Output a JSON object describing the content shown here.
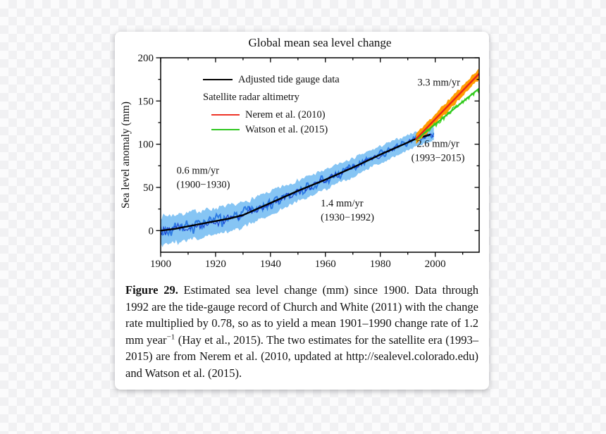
{
  "chart_data": {
    "type": "line",
    "title": "Global mean sea level change",
    "xlabel": "",
    "ylabel": "Sea level anomaly (mm)",
    "xlim": [
      1900,
      2016
    ],
    "ylim": [
      -25,
      200
    ],
    "xticks": [
      1900,
      1920,
      1940,
      1960,
      1980,
      2000
    ],
    "yticks": [
      0,
      50,
      100,
      150,
      200
    ],
    "x_minor_step": 10,
    "y_minor_step": 25,
    "grid": false,
    "legend_position": "upper left",
    "series": [
      {
        "name": "Tide gauge uncertainty band",
        "kind": "noisy-band",
        "color": "#86c5f4",
        "seed": 7,
        "x_start": 1900,
        "x_end": 1999.5,
        "half_width_mm": 10,
        "noise_mm": 6,
        "amp_taper": [
          1.3,
          0.6
        ],
        "points": [
          [
            1900,
            0
          ],
          [
            1905,
            2
          ],
          [
            1910,
            5
          ],
          [
            1915,
            8
          ],
          [
            1920,
            11
          ],
          [
            1925,
            14
          ],
          [
            1930,
            18
          ],
          [
            1940,
            32
          ],
          [
            1950,
            46
          ],
          [
            1960,
            59
          ],
          [
            1970,
            73
          ],
          [
            1980,
            88
          ],
          [
            1990,
            102
          ],
          [
            1992,
            105
          ],
          [
            1999.5,
            112
          ]
        ]
      },
      {
        "name": "Tide gauge record",
        "kind": "noisy-line",
        "color": "#2e7ce4",
        "width": 2.0,
        "seed": 3,
        "x_start": 1900,
        "x_end": 1999.5,
        "noise_mm": 8,
        "amp_taper": [
          1.3,
          0.6
        ],
        "points": [
          [
            1900,
            0
          ],
          [
            1905,
            2
          ],
          [
            1910,
            5
          ],
          [
            1915,
            8
          ],
          [
            1920,
            11
          ],
          [
            1925,
            14
          ],
          [
            1930,
            18
          ],
          [
            1940,
            32
          ],
          [
            1950,
            46
          ],
          [
            1960,
            59
          ],
          [
            1970,
            73
          ],
          [
            1980,
            88
          ],
          [
            1990,
            102
          ],
          [
            1992,
            105
          ],
          [
            1999.5,
            112
          ]
        ]
      },
      {
        "name": "Tide gauge record detail",
        "kind": "noisy-line",
        "color": "#1a3fd0",
        "width": 1.1,
        "seed": 12,
        "x_start": 1900,
        "x_end": 1999.5,
        "noise_mm": 5.5,
        "amp_taper": [
          1.3,
          0.6
        ],
        "points": [
          [
            1900,
            0
          ],
          [
            1905,
            2
          ],
          [
            1910,
            5
          ],
          [
            1915,
            8
          ],
          [
            1920,
            11
          ],
          [
            1925,
            14
          ],
          [
            1930,
            18
          ],
          [
            1940,
            32
          ],
          [
            1950,
            46
          ],
          [
            1960,
            59
          ],
          [
            1970,
            73
          ],
          [
            1980,
            88
          ],
          [
            1990,
            102
          ],
          [
            1992,
            105
          ],
          [
            1999.5,
            112
          ]
        ]
      },
      {
        "name": "Adjusted tide gauge data",
        "kind": "trend",
        "color": "#000000",
        "width": 2.4,
        "rate_labels": [
          "0.6 mm/yr (1900-1930)",
          "1.4 mm/yr (1930-1992)"
        ],
        "points": [
          [
            1900,
            0
          ],
          [
            1905,
            2
          ],
          [
            1910,
            5
          ],
          [
            1915,
            8
          ],
          [
            1920,
            11
          ],
          [
            1925,
            14
          ],
          [
            1930,
            18
          ],
          [
            1940,
            32
          ],
          [
            1950,
            46
          ],
          [
            1960,
            59
          ],
          [
            1970,
            73
          ],
          [
            1980,
            88
          ],
          [
            1990,
            102
          ],
          [
            1992,
            105
          ],
          [
            1998,
            111
          ]
        ]
      },
      {
        "name": "Nerem et al. (2010) altimetry band",
        "kind": "noisy-band",
        "color": "#ff9c00",
        "seed": 11,
        "x_start": 1993,
        "x_end": 2015.8,
        "half_width_mm": 4,
        "noise_mm": 4,
        "points": [
          [
            1993,
            106
          ],
          [
            2015.8,
            181
          ]
        ]
      },
      {
        "name": "Watson et al. (2015) record",
        "kind": "noisy-line",
        "color": "#46d827",
        "width": 1.5,
        "seed": 5,
        "x_start": 1993,
        "x_end": 2015.8,
        "noise_mm": 4.5,
        "points": [
          [
            1993,
            105
          ],
          [
            2015.8,
            164
          ]
        ]
      },
      {
        "name": "Watson et al. (2015)",
        "kind": "trend",
        "color": "#2fc71f",
        "width": 2.2,
        "rate_mm_per_yr": 2.6,
        "points": [
          [
            1993,
            105
          ],
          [
            2015.8,
            164
          ]
        ]
      },
      {
        "name": "Nerem et al. (2010)",
        "kind": "trend",
        "color": "#e8231a",
        "width": 2.4,
        "rate_mm_per_yr": 3.3,
        "points": [
          [
            1993,
            106
          ],
          [
            2015.8,
            181
          ]
        ]
      }
    ],
    "annotations": [
      {
        "lines": [
          "0.6 mm/yr",
          "(1900−1930)"
        ],
        "x": 1905.8,
        "y_mm": 66,
        "anchor": "start"
      },
      {
        "lines": [
          "1.4 mm/yr",
          "(1930−1992)"
        ],
        "x": 1958.3,
        "y_mm": 28,
        "anchor": "start"
      },
      {
        "lines": [
          "2.6 mm/yr",
          "(1993−2015)"
        ],
        "x": 2001.0,
        "y_mm": 97,
        "anchor": "middle"
      },
      {
        "lines": [
          "3.3 mm/yr"
        ],
        "x": 2001.3,
        "y_mm": 168,
        "anchor": "middle"
      }
    ],
    "legend": {
      "tide_label": "Adjusted tide gauge data",
      "satellite_header": "Satellite radar altimetry",
      "nerem_label": "Nerem et al. (2010)",
      "watson_label": "Watson et al. (2015)",
      "tide_color": "#000000",
      "nerem_color": "#ee3326",
      "watson_color": "#2fc71f"
    }
  },
  "caption": {
    "segments": [
      {
        "text": "Figure 29.",
        "bold": true
      },
      {
        "text": " Estimated sea level change (mm) since 1900. Data through 1992 are the tide-gauge record of Church and White (2011) with the change rate multiplied by 0.78, so as to yield a mean 1901–1990 change rate of 1.2 mm year"
      },
      {
        "text": "−1",
        "sup": true
      },
      {
        "text": " (Hay et al., 2015). The two estimates for the satellite era (1993–2015) are from Nerem et al. (2010, updated at http://sealevel.colorado.edu) and Watson et al. (2015)."
      }
    ]
  }
}
